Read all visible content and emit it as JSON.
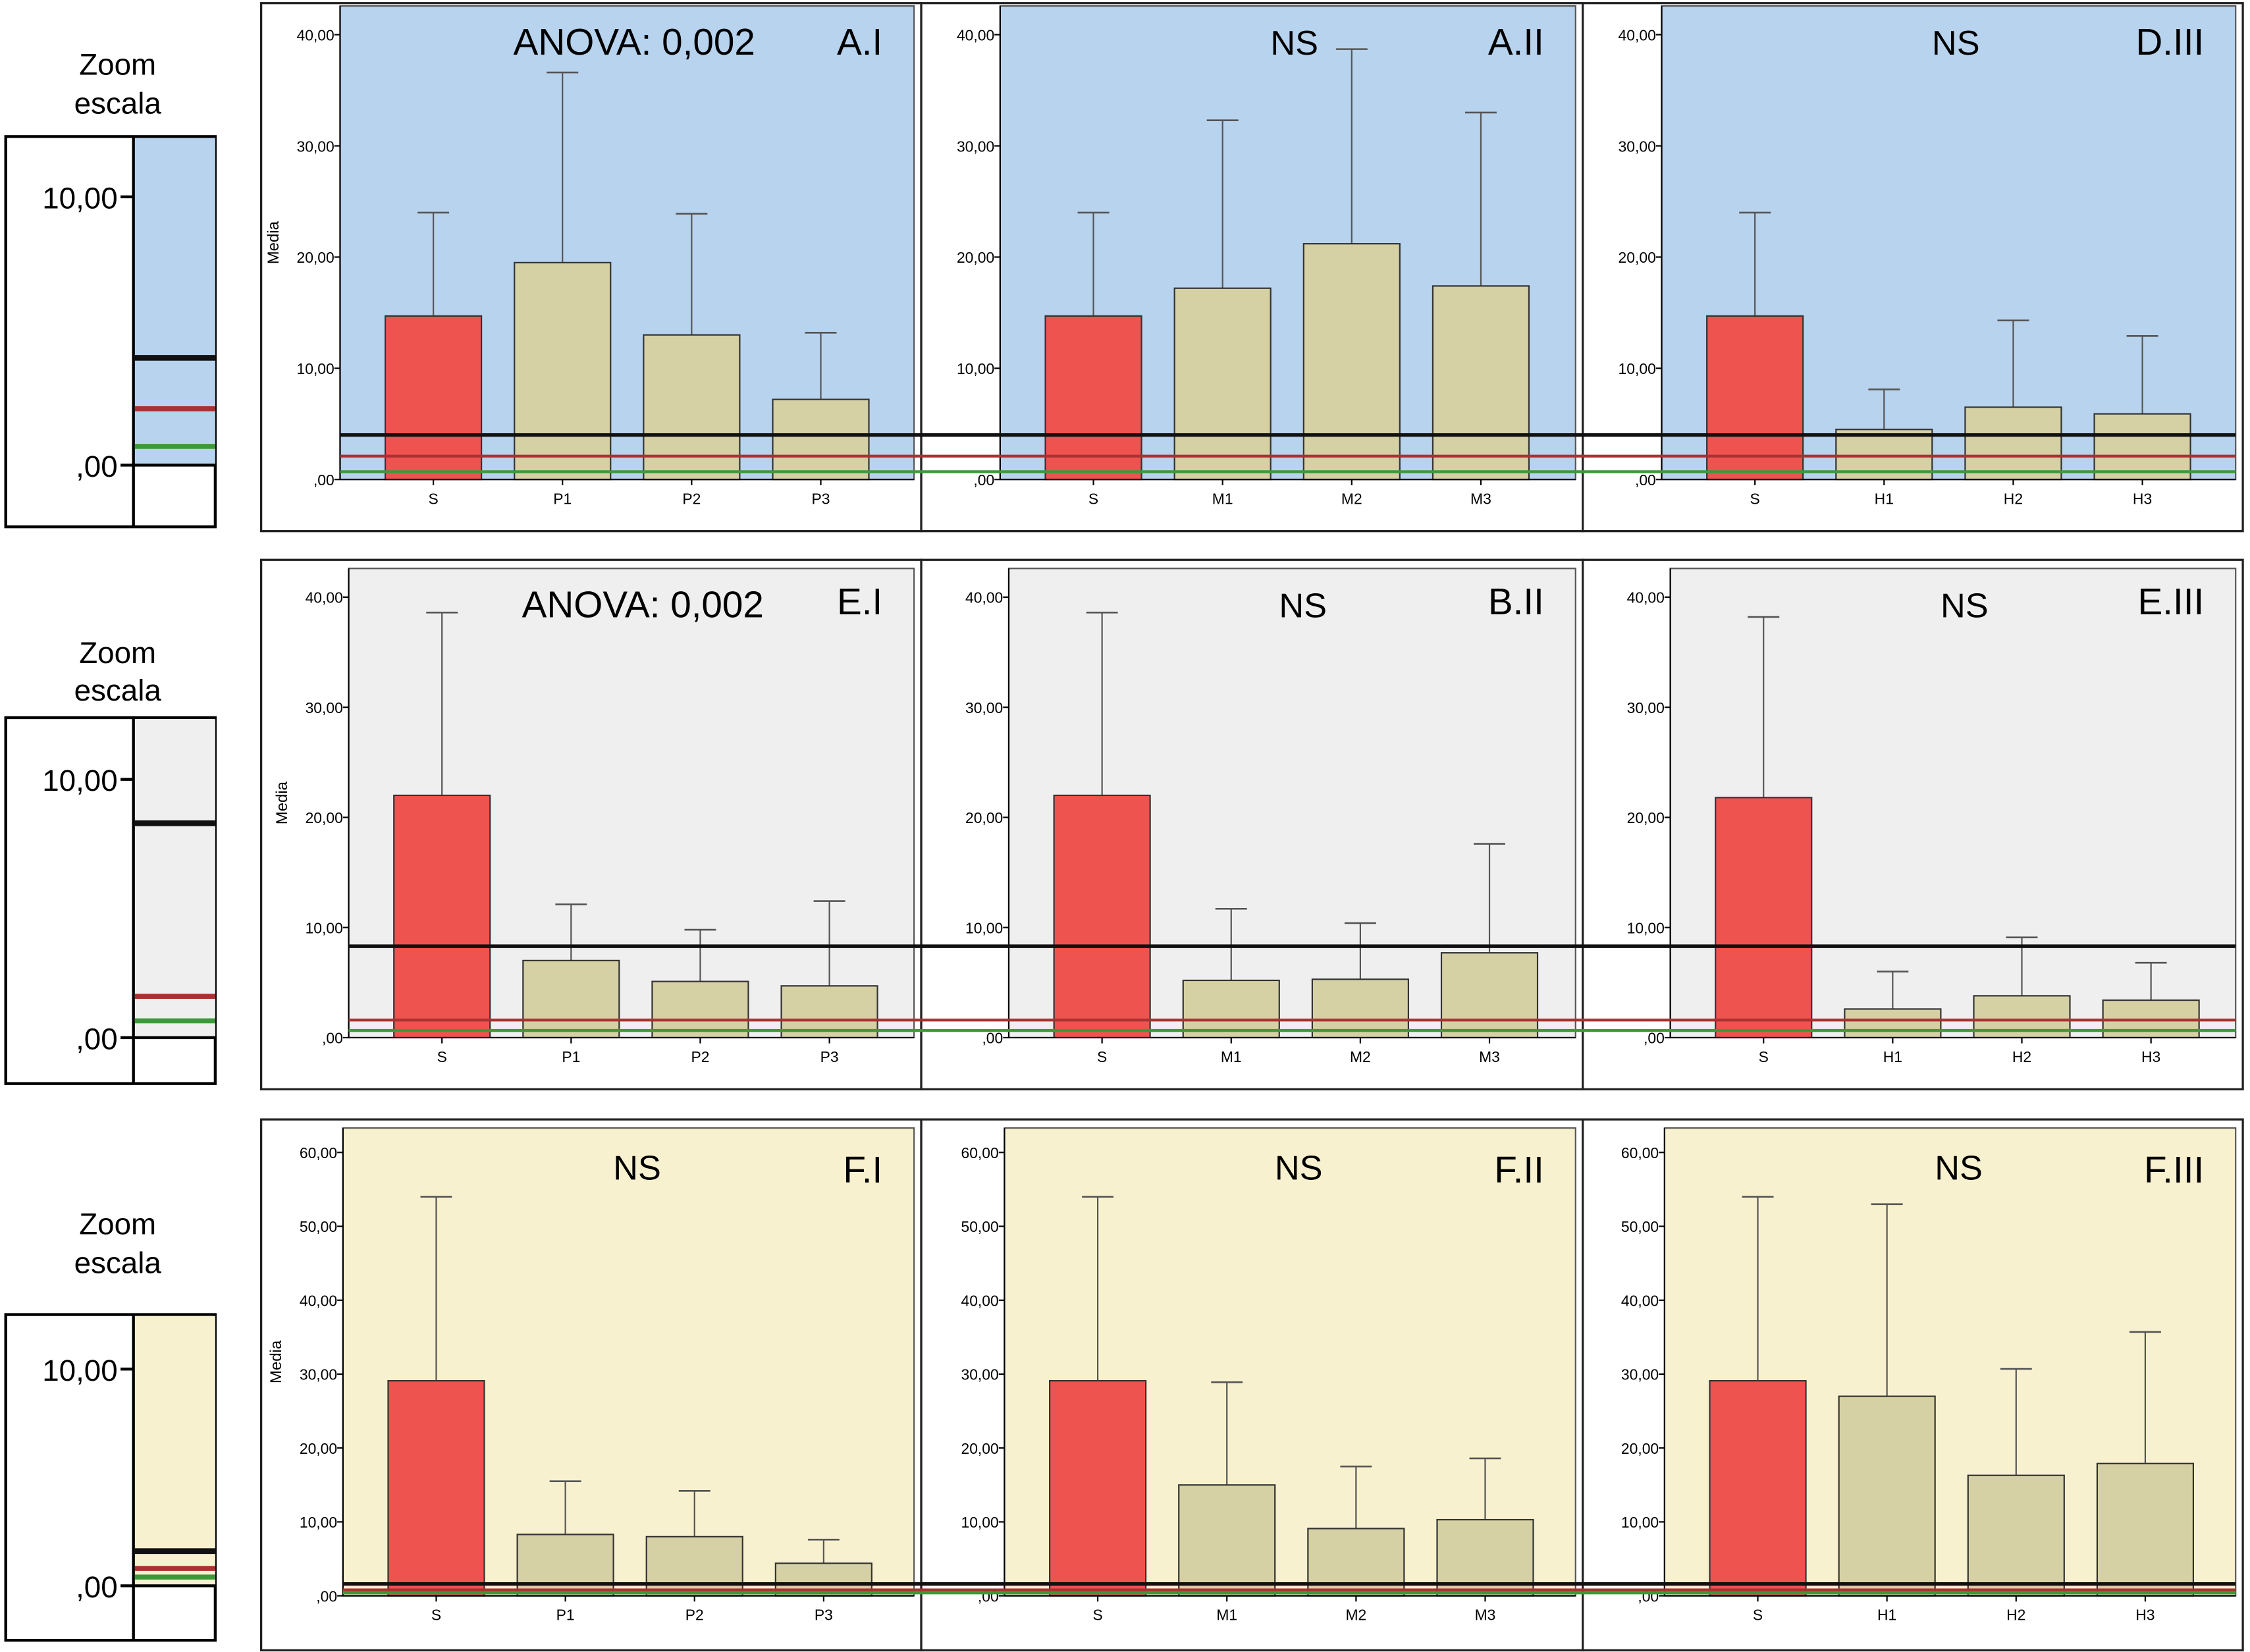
{
  "figure": {
    "y_axis_label": "Media",
    "zoom_label_line1": "Zoom",
    "zoom_label_line2": "escala",
    "colors": {
      "control_bar": "#ef5350",
      "group_bar": "#d5d1a4",
      "line_black": "#111111",
      "line_red": "#a83232",
      "line_green": "#3a9a3a"
    }
  },
  "chart_data": [
    {
      "row": 1,
      "type": "bar",
      "background": "#b8d3ee",
      "ylim": [
        0,
        40
      ],
      "yticks": [
        "40,00",
        "30,00",
        "20,00",
        "10,00",
        ",00"
      ],
      "zoom_ticks": [
        "10,00",
        ",00"
      ],
      "reference_lines": {
        "black": 4.0,
        "red": 2.1,
        "green": 0.7
      },
      "panels": [
        {
          "id": "A.I",
          "stat": "ANOVA: 0,002",
          "show_ylabel": true,
          "categories": [
            "S",
            "P1",
            "P2",
            "P3"
          ],
          "values": [
            14.7,
            19.5,
            13.0,
            7.2
          ],
          "error_upper": [
            24.0,
            36.6,
            23.9,
            13.2
          ]
        },
        {
          "id": "A.II",
          "stat": "NS",
          "categories": [
            "S",
            "M1",
            "M2",
            "M3"
          ],
          "values": [
            14.7,
            17.2,
            21.2,
            17.4
          ],
          "error_upper": [
            24.0,
            32.3,
            38.7,
            33.0
          ]
        },
        {
          "id": "D.III",
          "stat": "NS",
          "categories": [
            "S",
            "H1",
            "H2",
            "H3"
          ],
          "values": [
            14.7,
            4.5,
            6.5,
            5.9
          ],
          "error_upper": [
            24.0,
            8.1,
            14.3,
            12.9
          ]
        }
      ]
    },
    {
      "row": 2,
      "type": "bar",
      "background": "#efefef",
      "ylim": [
        0,
        40
      ],
      "yticks": [
        "40,00",
        "30,00",
        "20,00",
        "10,00",
        ",00"
      ],
      "zoom_ticks": [
        "10,00",
        ",00"
      ],
      "reference_lines": {
        "black": 8.3,
        "red": 1.6,
        "green": 0.65
      },
      "panels": [
        {
          "id": "E.I",
          "stat": "ANOVA: 0,002",
          "show_ylabel": true,
          "categories": [
            "S",
            "P1",
            "P2",
            "P3"
          ],
          "values": [
            22.0,
            7.0,
            5.1,
            4.7
          ],
          "error_upper": [
            38.6,
            12.1,
            9.8,
            12.4
          ]
        },
        {
          "id": "B.II",
          "stat": "NS",
          "categories": [
            "S",
            "M1",
            "M2",
            "M3"
          ],
          "values": [
            22.0,
            5.2,
            5.3,
            7.7
          ],
          "error_upper": [
            38.6,
            11.7,
            10.4,
            17.6
          ]
        },
        {
          "id": "E.III",
          "stat": "NS",
          "categories": [
            "S",
            "H1",
            "H2",
            "H3"
          ],
          "values": [
            21.8,
            2.6,
            3.8,
            3.4
          ],
          "error_upper": [
            38.2,
            6.0,
            9.1,
            6.8
          ]
        }
      ]
    },
    {
      "row": 3,
      "type": "bar",
      "background": "#f8f1cf",
      "ylim": [
        0,
        60
      ],
      "yticks": [
        "60,00",
        "50,00",
        "40,00",
        "30,00",
        "20,00",
        "10,00",
        ",00"
      ],
      "zoom_ticks": [
        "10,00",
        ",00"
      ],
      "reference_lines": {
        "black": 1.6,
        "red": 0.8,
        "green": 0.4
      },
      "panels": [
        {
          "id": "F.I",
          "stat": "NS",
          "show_ylabel": true,
          "categories": [
            "S",
            "P1",
            "P2",
            "P3"
          ],
          "values": [
            29.1,
            8.3,
            8.0,
            4.4
          ],
          "error_upper": [
            54.0,
            15.5,
            14.2,
            7.6
          ]
        },
        {
          "id": "F.II",
          "stat": "NS",
          "categories": [
            "S",
            "M1",
            "M2",
            "M3"
          ],
          "values": [
            29.1,
            15.0,
            9.1,
            10.3
          ],
          "error_upper": [
            54.0,
            28.9,
            17.5,
            18.6
          ]
        },
        {
          "id": "F.III",
          "stat": "NS",
          "categories": [
            "S",
            "H1",
            "H2",
            "H3"
          ],
          "values": [
            29.1,
            27.0,
            16.3,
            17.9
          ],
          "error_upper": [
            54.0,
            53.0,
            30.7,
            35.7
          ]
        }
      ]
    }
  ]
}
